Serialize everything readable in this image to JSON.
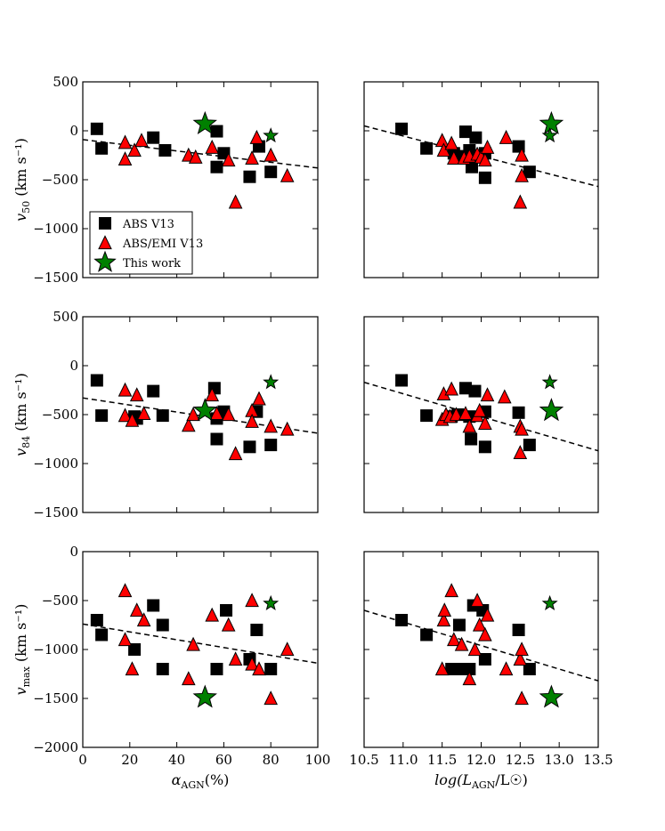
{
  "colors": {
    "abs": "#000000",
    "absemi": "#ff0000",
    "this_work": "#008000",
    "fit": "#000000"
  },
  "legend": {
    "entries": [
      {
        "label": "ABS V13",
        "marker": "square",
        "color": "#000000"
      },
      {
        "label": "ABS/EMI V13",
        "marker": "triangle",
        "color": "#ff0000"
      },
      {
        "label": "This work",
        "marker": "star",
        "color": "#008000"
      }
    ]
  },
  "chart_data": [
    {
      "id": "alpha-v50",
      "type": "scatter",
      "ylabel_base": "v",
      "ylabel_sub": "50",
      "ylabel_unit": "(km s⁻¹)",
      "xlabel_base": "",
      "xlabel_sub": "",
      "xlabel_tail": "",
      "xlim": [
        0,
        100
      ],
      "ylim": [
        -1500,
        500
      ],
      "xticks": [
        0,
        20,
        40,
        60,
        80,
        100
      ],
      "yticks": [
        500,
        0,
        -500,
        -1000,
        -1500
      ],
      "xtick_labels": [],
      "ytick_labels": [
        "500",
        "0",
        "−500",
        "−1000",
        "−1500"
      ],
      "fit": [
        [
          0,
          -90
        ],
        [
          100,
          -380
        ]
      ],
      "abs": [
        [
          6,
          20
        ],
        [
          8,
          -180
        ],
        [
          30,
          -70
        ],
        [
          35,
          -200
        ],
        [
          57,
          -5
        ],
        [
          57,
          -370
        ],
        [
          60,
          -230
        ],
        [
          75,
          -160
        ],
        [
          71,
          -470
        ],
        [
          80,
          -420
        ]
      ],
      "absemi": [
        [
          18,
          -120
        ],
        [
          18,
          -290
        ],
        [
          22,
          -200
        ],
        [
          25,
          -100
        ],
        [
          45,
          -250
        ],
        [
          48,
          -270
        ],
        [
          55,
          -170
        ],
        [
          62,
          -300
        ],
        [
          65,
          -730
        ],
        [
          72,
          -280
        ],
        [
          74,
          -70
        ],
        [
          80,
          -250
        ],
        [
          87,
          -460
        ]
      ],
      "this_work": [
        {
          "x": 52,
          "y": 70,
          "size": "large"
        },
        {
          "x": 80,
          "y": -50,
          "size": "small"
        }
      ]
    },
    {
      "id": "lum-v50",
      "type": "scatter",
      "ylabel_base": "",
      "ylabel_sub": "",
      "ylabel_unit": "",
      "xlabel_base": "",
      "xlabel_sub": "",
      "xlabel_tail": "",
      "xlim": [
        10.5,
        13.5
      ],
      "ylim": [
        -1500,
        500
      ],
      "xticks": [
        10.5,
        11.0,
        11.5,
        12.0,
        12.5,
        13.0,
        13.5
      ],
      "yticks": [
        500,
        0,
        -500,
        -1000,
        -1500
      ],
      "xtick_labels": [],
      "ytick_labels": [],
      "fit": [
        [
          10.5,
          50
        ],
        [
          13.5,
          -570
        ]
      ],
      "abs": [
        [
          10.98,
          20
        ],
        [
          11.3,
          -180
        ],
        [
          11.65,
          -230
        ],
        [
          11.7,
          -260
        ],
        [
          11.8,
          -10
        ],
        [
          11.85,
          -200
        ],
        [
          11.88,
          -370
        ],
        [
          11.93,
          -70
        ],
        [
          12.05,
          -230
        ],
        [
          12.05,
          -480
        ],
        [
          12.48,
          -160
        ],
        [
          12.62,
          -420
        ]
      ],
      "absemi": [
        [
          11.5,
          -100
        ],
        [
          11.52,
          -200
        ],
        [
          11.62,
          -130
        ],
        [
          11.65,
          -280
        ],
        [
          11.78,
          -280
        ],
        [
          11.85,
          -260
        ],
        [
          11.95,
          -240
        ],
        [
          12.0,
          -270
        ],
        [
          12.05,
          -300
        ],
        [
          12.08,
          -170
        ],
        [
          12.32,
          -70
        ],
        [
          12.5,
          -730
        ],
        [
          12.52,
          -250
        ],
        [
          12.52,
          -460
        ]
      ],
      "this_work": [
        {
          "x": 12.9,
          "y": 70,
          "size": "large"
        },
        {
          "x": 12.88,
          "y": -50,
          "size": "small"
        }
      ]
    },
    {
      "id": "alpha-v84",
      "type": "scatter",
      "ylabel_base": "v",
      "ylabel_sub": "84",
      "ylabel_unit": "(km s⁻¹)",
      "xlabel_base": "",
      "xlabel_sub": "",
      "xlabel_tail": "",
      "xlim": [
        0,
        100
      ],
      "ylim": [
        -1500,
        500
      ],
      "xticks": [
        0,
        20,
        40,
        60,
        80,
        100
      ],
      "yticks": [
        500,
        0,
        -500,
        -1000,
        -1500
      ],
      "xtick_labels": [],
      "ytick_labels": [
        "500",
        "0",
        "−500",
        "−1000",
        "−1500"
      ],
      "fit": [
        [
          0,
          -330
        ],
        [
          100,
          -690
        ]
      ],
      "abs": [
        [
          6,
          -150
        ],
        [
          8,
          -510
        ],
        [
          22,
          -520
        ],
        [
          23,
          -540
        ],
        [
          30,
          -260
        ],
        [
          34,
          -510
        ],
        [
          56,
          -230
        ],
        [
          57,
          -540
        ],
        [
          57,
          -750
        ],
        [
          60,
          -470
        ],
        [
          71,
          -830
        ],
        [
          74,
          -470
        ],
        [
          80,
          -810
        ]
      ],
      "absemi": [
        [
          18,
          -250
        ],
        [
          18,
          -510
        ],
        [
          21,
          -560
        ],
        [
          23,
          -300
        ],
        [
          26,
          -490
        ],
        [
          45,
          -610
        ],
        [
          47,
          -500
        ],
        [
          55,
          -300
        ],
        [
          57,
          -490
        ],
        [
          62,
          -500
        ],
        [
          65,
          -900
        ],
        [
          72,
          -460
        ],
        [
          72,
          -570
        ],
        [
          75,
          -340
        ],
        [
          80,
          -620
        ],
        [
          87,
          -650
        ]
      ],
      "this_work": [
        {
          "x": 52,
          "y": -460,
          "size": "large"
        },
        {
          "x": 80,
          "y": -170,
          "size": "small"
        }
      ]
    },
    {
      "id": "lum-v84",
      "type": "scatter",
      "ylabel_base": "",
      "ylabel_sub": "",
      "ylabel_unit": "",
      "xlabel_base": "",
      "xlabel_sub": "",
      "xlabel_tail": "",
      "xlim": [
        10.5,
        13.5
      ],
      "ylim": [
        -1500,
        500
      ],
      "xticks": [
        10.5,
        11.0,
        11.5,
        12.0,
        12.5,
        13.0,
        13.5
      ],
      "yticks": [
        500,
        0,
        -500,
        -1000,
        -1500
      ],
      "xtick_labels": [],
      "ytick_labels": [],
      "fit": [
        [
          10.5,
          -170
        ],
        [
          13.5,
          -870
        ]
      ],
      "abs": [
        [
          10.98,
          -150
        ],
        [
          11.3,
          -510
        ],
        [
          11.62,
          -520
        ],
        [
          11.7,
          -500
        ],
        [
          11.8,
          -230
        ],
        [
          11.85,
          -520
        ],
        [
          11.87,
          -750
        ],
        [
          11.92,
          -260
        ],
        [
          12.05,
          -470
        ],
        [
          12.05,
          -830
        ],
        [
          12.48,
          -480
        ],
        [
          12.62,
          -810
        ]
      ],
      "absemi": [
        [
          11.5,
          -550
        ],
        [
          11.52,
          -290
        ],
        [
          11.55,
          -500
        ],
        [
          11.6,
          -520
        ],
        [
          11.62,
          -240
        ],
        [
          11.68,
          -500
        ],
        [
          11.8,
          -490
        ],
        [
          11.85,
          -620
        ],
        [
          11.95,
          -510
        ],
        [
          11.98,
          -460
        ],
        [
          12.05,
          -590
        ],
        [
          12.08,
          -300
        ],
        [
          12.3,
          -320
        ],
        [
          12.5,
          -620
        ],
        [
          12.52,
          -650
        ],
        [
          12.5,
          -890
        ]
      ],
      "this_work": [
        {
          "x": 12.9,
          "y": -460,
          "size": "large"
        },
        {
          "x": 12.88,
          "y": -170,
          "size": "small"
        }
      ]
    },
    {
      "id": "alpha-vmax",
      "type": "scatter",
      "ylabel_base": "v",
      "ylabel_sub": "max",
      "ylabel_unit": "(km s⁻¹)",
      "xlabel_base": "α",
      "xlabel_sub": "AGN",
      "xlabel_tail": "(%)",
      "xlim": [
        0,
        100
      ],
      "ylim": [
        -2000,
        0
      ],
      "xticks": [
        0,
        20,
        40,
        60,
        80,
        100
      ],
      "yticks": [
        0,
        -500,
        -1000,
        -1500,
        -2000
      ],
      "xtick_labels": [
        "0",
        "20",
        "40",
        "60",
        "80",
        "100"
      ],
      "ytick_labels": [
        "0",
        "−500",
        "−1000",
        "−1500",
        "−2000"
      ],
      "fit": [
        [
          0,
          -740
        ],
        [
          100,
          -1140
        ]
      ],
      "abs": [
        [
          6,
          -700
        ],
        [
          8,
          -850
        ],
        [
          22,
          -1000
        ],
        [
          30,
          -550
        ],
        [
          34,
          -750
        ],
        [
          34,
          -1200
        ],
        [
          57,
          -1200
        ],
        [
          61,
          -600
        ],
        [
          71,
          -1100
        ],
        [
          74,
          -800
        ],
        [
          80,
          -1200
        ]
      ],
      "absemi": [
        [
          18,
          -400
        ],
        [
          18,
          -900
        ],
        [
          21,
          -1200
        ],
        [
          23,
          -600
        ],
        [
          26,
          -700
        ],
        [
          45,
          -1300
        ],
        [
          47,
          -950
        ],
        [
          55,
          -650
        ],
        [
          62,
          -750
        ],
        [
          65,
          -1100
        ],
        [
          72,
          -500
        ],
        [
          72,
          -1150
        ],
        [
          75,
          -1200
        ],
        [
          80,
          -1500
        ],
        [
          87,
          -1000
        ]
      ],
      "this_work": [
        {
          "x": 52,
          "y": -1490,
          "size": "large"
        },
        {
          "x": 80,
          "y": -530,
          "size": "small"
        }
      ]
    },
    {
      "id": "lum-vmax",
      "type": "scatter",
      "ylabel_base": "",
      "ylabel_sub": "",
      "ylabel_unit": "",
      "xlabel_base": "log(L",
      "xlabel_sub": "AGN",
      "xlabel_tail": "/L☉)",
      "xlim": [
        10.5,
        13.5
      ],
      "ylim": [
        -2000,
        0
      ],
      "xticks": [
        10.5,
        11.0,
        11.5,
        12.0,
        12.5,
        13.0,
        13.5
      ],
      "yticks": [
        0,
        -500,
        -1000,
        -1500,
        -2000
      ],
      "xtick_labels": [
        "10.5",
        "11.0",
        "11.5",
        "12.0",
        "12.5",
        "13.0",
        "13.5"
      ],
      "ytick_labels": [],
      "fit": [
        [
          10.5,
          -600
        ],
        [
          13.5,
          -1320
        ]
      ],
      "abs": [
        [
          10.98,
          -700
        ],
        [
          11.3,
          -850
        ],
        [
          11.62,
          -1200
        ],
        [
          11.7,
          -1200
        ],
        [
          11.72,
          -750
        ],
        [
          11.8,
          -1200
        ],
        [
          11.85,
          -1200
        ],
        [
          11.9,
          -550
        ],
        [
          12.02,
          -600
        ],
        [
          12.05,
          -1100
        ],
        [
          12.48,
          -800
        ],
        [
          12.62,
          -1200
        ]
      ],
      "absemi": [
        [
          11.5,
          -1200
        ],
        [
          11.52,
          -700
        ],
        [
          11.53,
          -600
        ],
        [
          11.62,
          -400
        ],
        [
          11.65,
          -900
        ],
        [
          11.75,
          -950
        ],
        [
          11.85,
          -1300
        ],
        [
          11.92,
          -1000
        ],
        [
          11.95,
          -500
        ],
        [
          11.98,
          -750
        ],
        [
          12.05,
          -850
        ],
        [
          12.08,
          -650
        ],
        [
          12.32,
          -1200
        ],
        [
          12.5,
          -1100
        ],
        [
          12.52,
          -1000
        ],
        [
          12.52,
          -1500
        ]
      ],
      "this_work": [
        {
          "x": 12.9,
          "y": -1490,
          "size": "large"
        },
        {
          "x": 12.88,
          "y": -530,
          "size": "small"
        }
      ]
    }
  ]
}
